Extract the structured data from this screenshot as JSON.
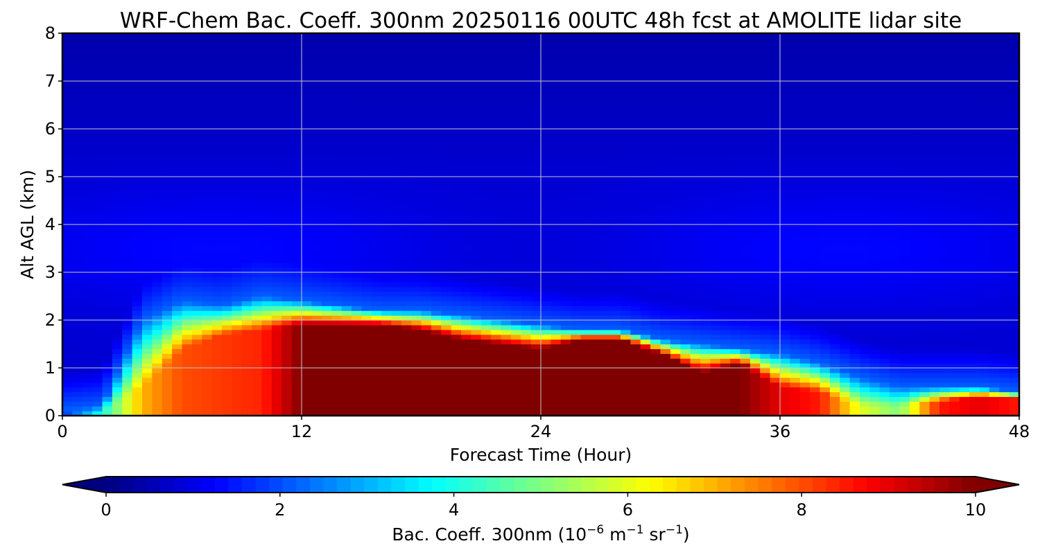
{
  "chart_data": {
    "type": "heatmap",
    "title": "WRF-Chem Bac. Coeff. 300nm  20250116 00UTC 48h fcst at AMOLITE lidar site",
    "xlabel": "Forecast Time (Hour)",
    "ylabel": "Alt AGL (km)",
    "xlim": [
      0,
      48
    ],
    "ylim": [
      0,
      8
    ],
    "xticks": [
      "0",
      "12",
      "24",
      "36",
      "48"
    ],
    "yticks": [
      "0",
      "1",
      "2",
      "3",
      "4",
      "5",
      "6",
      "7",
      "8"
    ],
    "grid": true,
    "colormap": "jet",
    "colorbar": {
      "label_main": "Bac. Coeff. 300nm  (10",
      "label_exp1": "−6",
      "label_mid": " m",
      "label_exp2": "−1",
      "label_mid2": " sr",
      "label_exp3": "−1",
      "label_end": ")",
      "range": [
        0,
        10
      ],
      "ticks": [
        "0",
        "2",
        "4",
        "6",
        "8",
        "10"
      ],
      "extend": "both"
    },
    "field_description": {
      "hours": [
        0,
        2,
        4,
        6,
        8,
        10,
        12,
        14,
        16,
        18,
        20,
        22,
        24,
        26,
        28,
        30,
        32,
        34,
        36,
        38,
        40,
        42,
        44,
        46,
        48
      ],
      "top_km_of_high_layer": [
        0.0,
        0.1,
        0.6,
        1.4,
        1.7,
        1.8,
        1.9,
        1.9,
        1.9,
        1.8,
        1.6,
        1.5,
        1.4,
        1.6,
        1.6,
        1.3,
        0.9,
        1.1,
        0.6,
        0.5,
        0.2,
        0.2,
        0.3,
        0.4,
        0.35
      ],
      "aerosol_layer_top_km": [
        0.1,
        0.2,
        2.0,
        2.4,
        2.3,
        2.5,
        2.4,
        2.3,
        2.2,
        2.2,
        2.1,
        2.0,
        1.9,
        1.8,
        1.8,
        1.6,
        1.5,
        1.4,
        1.3,
        1.1,
        0.8,
        0.6,
        0.6,
        0.6,
        0.5
      ],
      "peak_value_in_layer": [
        1.5,
        4.0,
        7.0,
        8.0,
        8.2,
        8.4,
        10.0,
        10.0,
        10.0,
        10.0,
        10.0,
        10.0,
        10.0,
        10.0,
        10.0,
        10.0,
        10.0,
        10.0,
        9.0,
        8.5,
        6.0,
        5.0,
        8.5,
        9.0,
        8.5
      ],
      "upper_background": 0.8
    }
  }
}
